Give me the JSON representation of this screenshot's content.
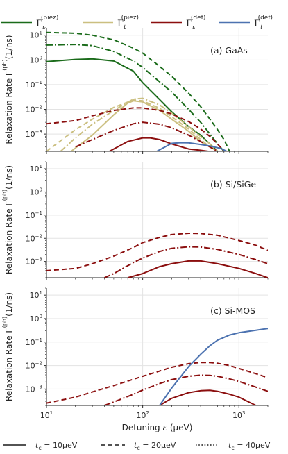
{
  "chart_data": [
    {
      "type": "line",
      "panel_label": "(a) GaAs",
      "ylabel": "Relaxation Rate Γ_−^(ph) (1/ns)",
      "xscale": "log",
      "yscale": "log",
      "xlim": [
        10,
        2000
      ],
      "ylim": [
        0.0002,
        20
      ],
      "series": [
        {
          "name": "Γ_ε^(piez)",
          "color": "#1a6b1a",
          "t_c": "10μeV",
          "x": [
            10,
            20,
            30,
            50,
            80,
            100,
            150,
            200,
            300,
            400,
            500,
            600
          ],
          "y": [
            0.85,
            1.05,
            1.1,
            0.9,
            0.35,
            0.12,
            0.025,
            0.008,
            0.002,
            0.0009,
            0.0004,
            0.0002
          ]
        },
        {
          "name": "Γ_ε^(piez)",
          "color": "#1a6b1a",
          "t_c": "20μeV",
          "x": [
            10,
            20,
            30,
            50,
            80,
            100,
            150,
            200,
            300,
            400,
            500,
            600,
            700,
            800
          ],
          "y": [
            13,
            12,
            10,
            6.5,
            3,
            1.9,
            0.55,
            0.22,
            0.045,
            0.013,
            0.004,
            0.0015,
            0.0006,
            0.0002
          ]
        },
        {
          "name": "Γ_ε^(piez)",
          "color": "#1a6b1a",
          "t_c": "40μeV",
          "x": [
            10,
            20,
            30,
            50,
            80,
            100,
            150,
            200,
            300,
            400,
            500,
            600,
            700
          ],
          "y": [
            4,
            4.2,
            3.8,
            2.2,
            0.9,
            0.5,
            0.13,
            0.05,
            0.01,
            0.003,
            0.001,
            0.0004,
            0.0002
          ]
        },
        {
          "name": "Γ_t^(piez)",
          "color": "#cbbf80",
          "t_c": "10μeV",
          "x": [
            18,
            30,
            50,
            70,
            80,
            100,
            150,
            200,
            300,
            400,
            500,
            600
          ],
          "y": [
            0.0002,
            0.0009,
            0.006,
            0.018,
            0.022,
            0.02,
            0.009,
            0.004,
            0.0013,
            0.0005,
            0.0003,
            0.0002
          ]
        },
        {
          "name": "Γ_t^(piez)",
          "color": "#cbbf80",
          "t_c": "20μeV",
          "x": [
            10,
            20,
            30,
            50,
            80,
            100,
            150,
            200,
            300,
            400,
            500,
            600
          ],
          "y": [
            0.0002,
            0.0015,
            0.004,
            0.012,
            0.024,
            0.022,
            0.011,
            0.005,
            0.0016,
            0.0006,
            0.0003,
            0.0002
          ]
        },
        {
          "name": "Γ_t^(piez)",
          "color": "#cbbf80",
          "t_c": "40μeV",
          "x": [
            14,
            20,
            30,
            50,
            80,
            100,
            150,
            200,
            300,
            400,
            500,
            600
          ],
          "y": [
            0.0002,
            0.0007,
            0.0025,
            0.009,
            0.026,
            0.028,
            0.015,
            0.007,
            0.002,
            0.0008,
            0.0004,
            0.0002
          ]
        },
        {
          "name": "Γ_ε^(def)",
          "color": "#8b0e0e",
          "t_c": "10μeV",
          "x": [
            45,
            70,
            100,
            120,
            150,
            200,
            300,
            400,
            480
          ],
          "y": [
            0.0002,
            0.0005,
            0.0007,
            0.0007,
            0.0006,
            0.0004,
            0.00025,
            0.00022,
            0.0002
          ]
        },
        {
          "name": "Γ_ε^(def)",
          "color": "#8b0e0e",
          "t_c": "20μeV",
          "x": [
            10,
            20,
            30,
            50,
            80,
            100,
            150,
            200,
            300,
            400,
            500,
            600,
            700
          ],
          "y": [
            0.0026,
            0.0035,
            0.0055,
            0.009,
            0.0115,
            0.0115,
            0.009,
            0.0065,
            0.0032,
            0.0016,
            0.0008,
            0.0004,
            0.0002
          ]
        },
        {
          "name": "Γ_ε^(def)",
          "color": "#8b0e0e",
          "t_c": "40μeV",
          "x": [
            20,
            30,
            50,
            80,
            100,
            150,
            200,
            300,
            400,
            500,
            600
          ],
          "y": [
            0.0003,
            0.0006,
            0.0014,
            0.0026,
            0.003,
            0.0025,
            0.0018,
            0.0009,
            0.0005,
            0.0003,
            0.0002
          ]
        },
        {
          "name": "Γ_t^(def)",
          "color": "#4c72b0",
          "t_c": "10μeV",
          "x": [
            140,
            170,
            200,
            250,
            300,
            400,
            500,
            650,
            750
          ],
          "y": [
            0.0002,
            0.0003,
            0.00042,
            0.00045,
            0.00044,
            0.00038,
            0.00033,
            0.00026,
            0.0002
          ]
        }
      ]
    },
    {
      "type": "line",
      "panel_label": "(b) Si/SiGe",
      "ylabel": "Relaxation Rate Γ_−^(ph) (1/ns)",
      "xscale": "log",
      "yscale": "log",
      "xlim": [
        10,
        2000
      ],
      "ylim": [
        0.0002,
        20
      ],
      "series": [
        {
          "name": "Γ_ε^(def)",
          "color": "#8b0e0e",
          "t_c": "10μeV",
          "x": [
            70,
            100,
            150,
            200,
            300,
            400,
            600,
            1000,
            1500,
            2000
          ],
          "y": [
            0.0002,
            0.0003,
            0.0006,
            0.0008,
            0.00105,
            0.00105,
            0.0008,
            0.0005,
            0.0003,
            0.0002
          ]
        },
        {
          "name": "Γ_ε^(def)",
          "color": "#8b0e0e",
          "t_c": "20μeV",
          "x": [
            10,
            20,
            30,
            50,
            80,
            100,
            150,
            200,
            300,
            400,
            600,
            1000,
            1500,
            2000
          ],
          "y": [
            0.0004,
            0.0005,
            0.0008,
            0.0017,
            0.004,
            0.0065,
            0.011,
            0.0145,
            0.0165,
            0.016,
            0.0135,
            0.008,
            0.005,
            0.003
          ]
        },
        {
          "name": "Γ_ε^(def)",
          "color": "#8b0e0e",
          "t_c": "40μeV",
          "x": [
            40,
            50,
            80,
            100,
            150,
            200,
            300,
            400,
            600,
            1000,
            1500,
            2000
          ],
          "y": [
            0.0002,
            0.0003,
            0.0009,
            0.0014,
            0.0027,
            0.0037,
            0.0043,
            0.0042,
            0.0033,
            0.002,
            0.0012,
            0.0008
          ]
        }
      ]
    },
    {
      "type": "line",
      "panel_label": "(c) Si-MOS",
      "ylabel": "Relaxation Rate Γ_−^(ph) (1/ns)",
      "xlabel": "Detuning ε (μeV)",
      "xscale": "log",
      "yscale": "log",
      "xlim": [
        10,
        2000
      ],
      "ylim": [
        0.0002,
        20
      ],
      "series": [
        {
          "name": "Γ_ε^(def)",
          "color": "#8b0e0e",
          "t_c": "10μeV",
          "x": [
            150,
            200,
            300,
            400,
            500,
            600,
            800,
            1000,
            1500
          ],
          "y": [
            0.0002,
            0.0004,
            0.0007,
            0.00085,
            0.00088,
            0.0008,
            0.0006,
            0.00045,
            0.0002
          ]
        },
        {
          "name": "Γ_ε^(def)",
          "color": "#8b0e0e",
          "t_c": "20μeV",
          "x": [
            10,
            20,
            30,
            50,
            80,
            100,
            150,
            200,
            300,
            400,
            500,
            600,
            800,
            1000,
            1500,
            2000
          ],
          "y": [
            0.00025,
            0.00045,
            0.00075,
            0.0014,
            0.0026,
            0.0035,
            0.0058,
            0.0085,
            0.012,
            0.0135,
            0.0135,
            0.0125,
            0.01,
            0.0075,
            0.0045,
            0.003
          ]
        },
        {
          "name": "Γ_ε^(def)",
          "color": "#8b0e0e",
          "t_c": "40μeV",
          "x": [
            40,
            50,
            80,
            100,
            150,
            200,
            300,
            400,
            500,
            600,
            800,
            1000,
            1500,
            2000
          ],
          "y": [
            0.0002,
            0.00028,
            0.0006,
            0.0009,
            0.0017,
            0.0025,
            0.0035,
            0.0039,
            0.0038,
            0.0035,
            0.0027,
            0.0021,
            0.0012,
            0.0008
          ]
        },
        {
          "name": "Γ_t^(def)",
          "color": "#4c72b0",
          "t_c": "10μeV",
          "x": [
            150,
            200,
            300,
            400,
            500,
            600,
            800,
            1000,
            1500,
            2000
          ],
          "y": [
            0.0002,
            0.0011,
            0.009,
            0.03,
            0.07,
            0.12,
            0.2,
            0.25,
            0.32,
            0.38
          ]
        }
      ]
    }
  ],
  "legend": {
    "top": [
      {
        "name": "Γ_ε^(piez)",
        "base": "Γ",
        "sub": "ε",
        "sup": "(piez)",
        "color": "#1a6b1a"
      },
      {
        "name": "Γ_t^(piez)",
        "base": "Γ",
        "sub": "t",
        "sup": "(piez)",
        "color": "#cbbf80"
      },
      {
        "name": "Γ_ε^(def)",
        "base": "Γ",
        "sub": "ε",
        "sup": "(def)",
        "color": "#8b0e0e"
      },
      {
        "name": "Γ_t^(def)",
        "base": "Γ",
        "sub": "t",
        "sup": "(def)",
        "color": "#4c72b0"
      }
    ],
    "bottom": [
      {
        "label": "t_c = 10μeV",
        "math": "t",
        "sub": "c",
        "rest": " = 10μeV",
        "style": "solid"
      },
      {
        "label": "t_c = 20μeV",
        "math": "t",
        "sub": "c",
        "rest": " = 20μeV",
        "style": "dashed"
      },
      {
        "label": "t_c = 40μeV",
        "math": "t",
        "sub": "c",
        "rest": " = 40μeV",
        "style": "dotted"
      }
    ]
  },
  "axis_text": {
    "ylabel_main": "Relaxation Rate Γ",
    "ylabel_sub": "−",
    "ylabel_sup": "(ph)",
    "ylabel_unit": "(1/ns)",
    "xlabel_main": "Detuning ",
    "xlabel_eps": "ε",
    "xlabel_unit": " (μeV)",
    "xticks": [
      {
        "base": "10",
        "exp": "1"
      },
      {
        "base": "10",
        "exp": "2"
      },
      {
        "base": "10",
        "exp": "3"
      }
    ],
    "yticks": [
      {
        "base": "10",
        "exp": "1"
      },
      {
        "base": "10",
        "exp": "0"
      },
      {
        "base": "10",
        "exp": "−1"
      },
      {
        "base": "10",
        "exp": "−2"
      },
      {
        "base": "10",
        "exp": "−3"
      }
    ]
  }
}
